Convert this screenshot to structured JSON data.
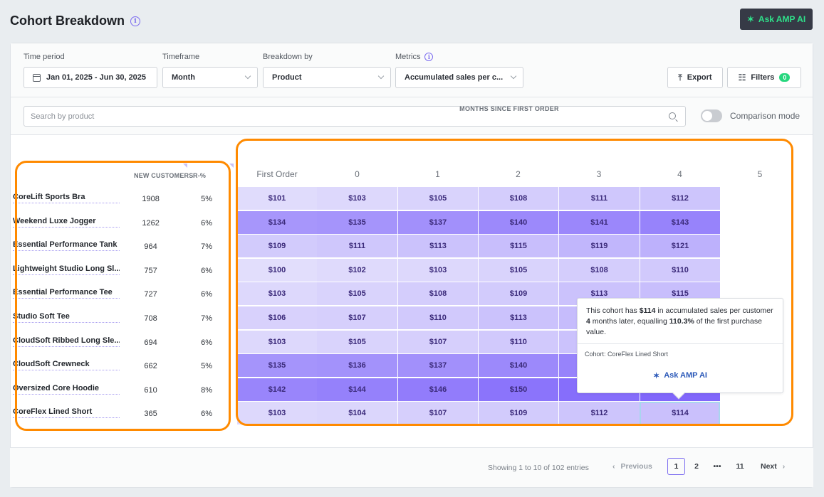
{
  "header": {
    "title": "Cohort Breakdown",
    "ask_ai_label": "Ask AMP AI"
  },
  "filters": {
    "time_period": {
      "label": "Time period",
      "value": "Jan 01, 2025 - Jun 30, 2025"
    },
    "timeframe": {
      "label": "Timeframe",
      "value": "Month"
    },
    "breakdown": {
      "label": "Breakdown by",
      "value": "Product"
    },
    "metrics": {
      "label": "Metrics",
      "value": "Accumulated sales per c..."
    },
    "export_label": "Export",
    "filters_label": "Filters",
    "filters_count": "0"
  },
  "search": {
    "placeholder": "Search by product",
    "value": ""
  },
  "comparison": {
    "label": "Comparison mode",
    "enabled": false
  },
  "left_table": {
    "headers": [
      "NEW CUSTOMERS",
      "R-%"
    ],
    "rows": [
      {
        "product": "CoreLift Sports Bra",
        "new_customers": "1908",
        "r_pct": "5%"
      },
      {
        "product": "Weekend Luxe Jogger",
        "new_customers": "1262",
        "r_pct": "6%"
      },
      {
        "product": "Essential Performance Tank",
        "new_customers": "964",
        "r_pct": "7%"
      },
      {
        "product": "Lightweight Studio Long Sl...",
        "new_customers": "757",
        "r_pct": "6%"
      },
      {
        "product": "Essential Performance Tee",
        "new_customers": "727",
        "r_pct": "6%"
      },
      {
        "product": "Studio Soft Tee",
        "new_customers": "708",
        "r_pct": "7%"
      },
      {
        "product": "CloudSoft Ribbed Long Sle...",
        "new_customers": "694",
        "r_pct": "6%"
      },
      {
        "product": "CloudSoft Crewneck",
        "new_customers": "662",
        "r_pct": "5%"
      },
      {
        "product": "Oversized Core Hoodie",
        "new_customers": "610",
        "r_pct": "8%"
      },
      {
        "product": "CoreFlex Lined Short",
        "new_customers": "365",
        "r_pct": "6%"
      }
    ]
  },
  "cohort_grid": {
    "title": "MONTHS SINCE FIRST ORDER",
    "columns": [
      "First Order",
      "0",
      "1",
      "2",
      "3",
      "4",
      "5"
    ],
    "rows": [
      [
        "$101",
        "$103",
        "$105",
        "$108",
        "$111",
        "$112"
      ],
      [
        "$134",
        "$135",
        "$137",
        "$140",
        "$141",
        "$143"
      ],
      [
        "$109",
        "$111",
        "$113",
        "$115",
        "$119",
        "$121"
      ],
      [
        "$100",
        "$102",
        "$103",
        "$105",
        "$108",
        "$110"
      ],
      [
        "$103",
        "$105",
        "$108",
        "$109",
        "$113",
        "$115"
      ],
      [
        "$106",
        "$107",
        "$110",
        "$113",
        "",
        ""
      ],
      [
        "$103",
        "$105",
        "$107",
        "$110",
        "",
        ""
      ],
      [
        "$135",
        "$136",
        "$137",
        "$140",
        "",
        ""
      ],
      [
        "$142",
        "$144",
        "$146",
        "$150",
        "",
        ""
      ],
      [
        "$103",
        "$104",
        "$107",
        "$109",
        "$112",
        "$114"
      ]
    ],
    "selected_cell": {
      "row": 9,
      "col": 5
    },
    "color_low": "#e2defc",
    "color_high": "#8b74fb"
  },
  "tooltip": {
    "text_pre": "This cohort has ",
    "value": "$114",
    "text_mid1": " in accumulated sales per customer ",
    "months": "4",
    "text_mid2": " months later, equalling ",
    "pct": "110.3%",
    "text_post": " of the first purchase value.",
    "cohort_label": "Cohort: CoreFlex Lined Short",
    "ask_ai_label": "Ask AMP AI"
  },
  "pagination": {
    "showing": "Showing 1 to 10 of 102 entries",
    "previous": "Previous",
    "pages": [
      "1",
      "2",
      "•••",
      "11"
    ],
    "current": "1",
    "next": "Next"
  }
}
